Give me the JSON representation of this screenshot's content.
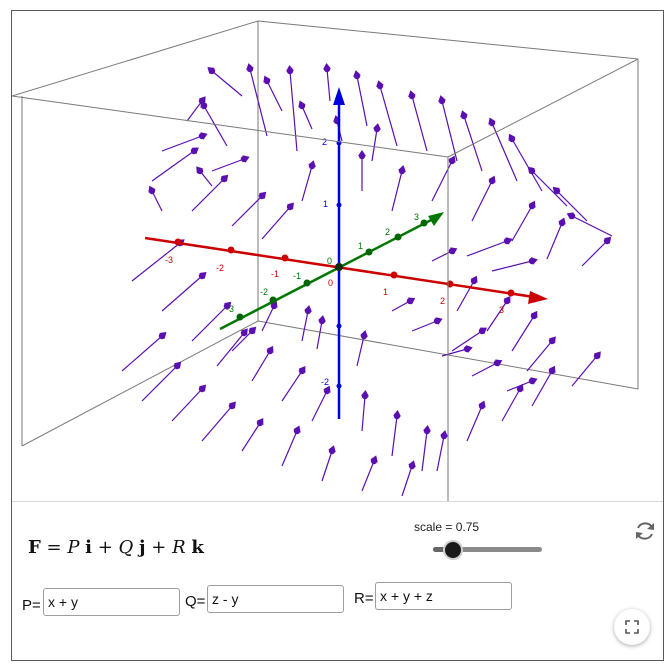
{
  "viewport": {
    "description_icon": "3d-vector-field",
    "colors": {
      "x_axis": "#cc0000",
      "y_axis": "#007700",
      "z_axis": "#0000dd",
      "vectors": "#5b0fb0",
      "box": "#7a7a7a"
    },
    "x_axis_ticks": [
      "-3",
      "-2",
      "-1",
      "0",
      "1",
      "2",
      "3"
    ],
    "y_axis_ticks": [
      "-3",
      "-2",
      "-1",
      "0",
      "1",
      "2",
      "3"
    ],
    "z_axis_ticks": [
      "-2",
      "1",
      "2"
    ]
  },
  "formula": {
    "F": "F",
    "eq": " = ",
    "P": "P",
    "i": "i",
    "plus1": " + ",
    "Q": "Q",
    "j": "j",
    "plus2": " + ",
    "R": "R",
    "k": "k"
  },
  "scale": {
    "label": "scale = 0.75",
    "value": 0.75,
    "min": 0,
    "max": 1
  },
  "inputs": {
    "p_label": "P=",
    "p_value": "x + y",
    "q_label": "Q=",
    "q_value": "z - y",
    "r_label": "R=",
    "r_value": "x + y + z"
  },
  "icons": {
    "reset": "reset-icon",
    "fullscreen": "fullscreen-icon"
  }
}
